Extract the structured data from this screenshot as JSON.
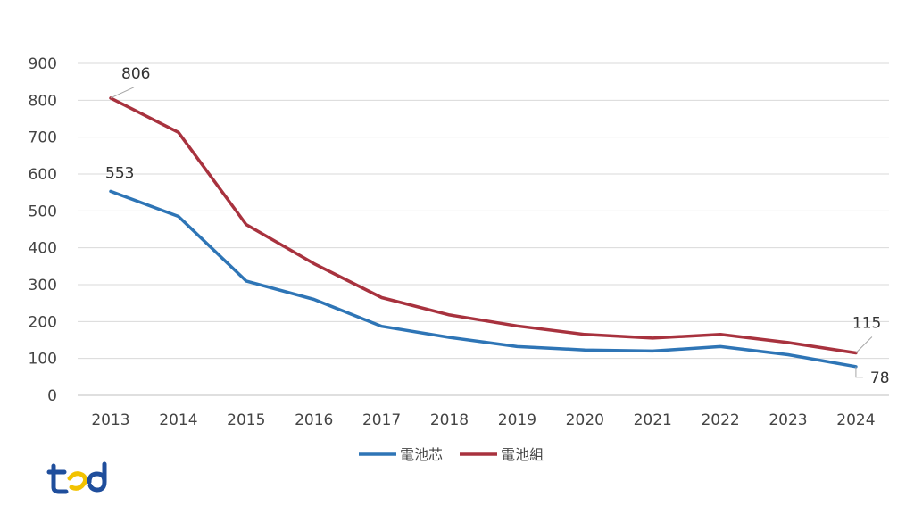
{
  "chart_data": {
    "type": "line",
    "categories": [
      "2013",
      "2014",
      "2015",
      "2016",
      "2017",
      "2018",
      "2019",
      "2020",
      "2021",
      "2022",
      "2023",
      "2024"
    ],
    "ylim": [
      0,
      900
    ],
    "yticks": [
      0,
      100,
      200,
      300,
      400,
      500,
      600,
      700,
      800,
      900
    ],
    "grid": true,
    "legend_position": "bottom",
    "series": [
      {
        "name": "電池芯",
        "color": "#2e75b6",
        "values": [
          553,
          485,
          310,
          260,
          187,
          157,
          132,
          123,
          120,
          132,
          110,
          78
        ]
      },
      {
        "name": "電池組",
        "color": "#a8323e",
        "values": [
          806,
          713,
          463,
          357,
          265,
          218,
          188,
          165,
          155,
          165,
          143,
          115
        ]
      }
    ],
    "annotations": [
      {
        "series": 1,
        "index": 0,
        "text": "806"
      },
      {
        "series": 0,
        "index": 0,
        "text": "553"
      },
      {
        "series": 1,
        "index": 11,
        "text": "115"
      },
      {
        "series": 0,
        "index": 11,
        "text": "78"
      }
    ]
  },
  "logo": {
    "text": "ted",
    "colors": [
      "#1f4e9c",
      "#f2c200"
    ]
  }
}
